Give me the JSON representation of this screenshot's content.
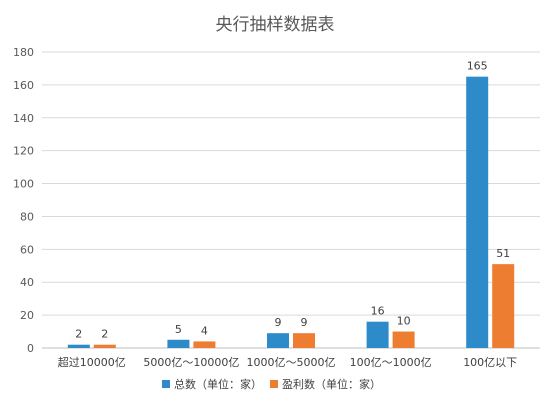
{
  "chart_data": {
    "type": "bar",
    "title": "央行抽样数据表",
    "categories": [
      "超过10000亿",
      "5000亿～10000亿",
      "1000亿～5000亿",
      "100亿～1000亿",
      "100亿以下"
    ],
    "series": [
      {
        "name": "总数（单位：家）",
        "values": [
          2,
          5,
          9,
          16,
          165
        ],
        "color": "#2e8bc9"
      },
      {
        "name": "盈利数（单位：家）",
        "values": [
          2,
          4,
          9,
          10,
          51
        ],
        "color": "#ed7d31"
      }
    ],
    "ylim": [
      0,
      180
    ],
    "yticks": [
      "0",
      "20",
      "40",
      "60",
      "80",
      "100",
      "120",
      "140",
      "160",
      "180"
    ],
    "grid": true,
    "legend": "bottom"
  }
}
